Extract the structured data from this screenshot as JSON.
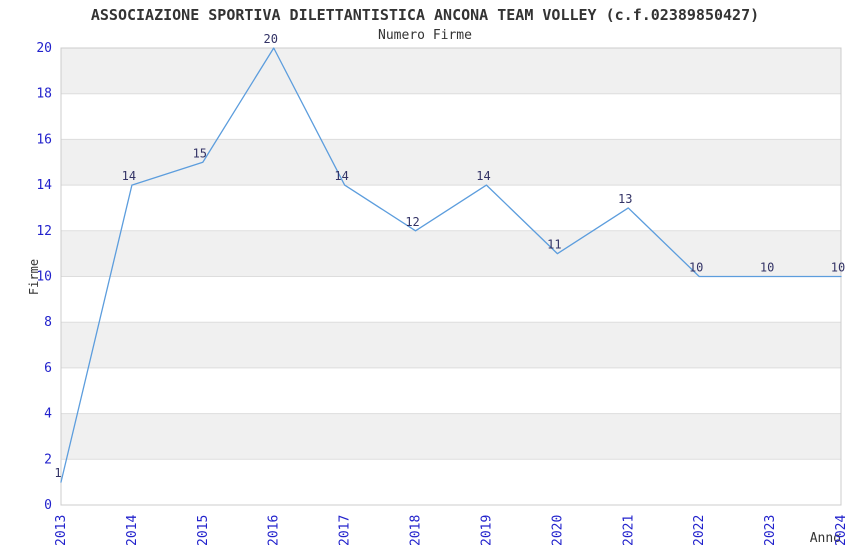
{
  "header": {
    "title": "ASSOCIAZIONE SPORTIVA DILETTANTISTICA ANCONA TEAM VOLLEY (c.f.02389850427)",
    "subtitle": "Numero Firme"
  },
  "chart_data": {
    "type": "line",
    "title": "ASSOCIAZIONE SPORTIVA DILETTANTISTICA ANCONA TEAM VOLLEY (c.f.02389850427)",
    "subtitle": "Numero Firme",
    "categories": [
      "2013",
      "2014",
      "2015",
      "2016",
      "2017",
      "2018",
      "2019",
      "2020",
      "2021",
      "2022",
      "2023",
      "2024"
    ],
    "values": [
      1,
      14,
      15,
      20,
      14,
      12,
      14,
      11,
      13,
      10,
      10,
      10
    ],
    "xlabel": "Anno",
    "ylabel": "Firme",
    "ylim": [
      0,
      20
    ],
    "ytick_step": 2,
    "yticks": [
      0,
      2,
      4,
      6,
      8,
      10,
      12,
      14,
      16,
      18,
      20
    ],
    "grid": "alternating horizontal bands, boundary lines every 2 units",
    "legend_position": "none",
    "data_labels": true,
    "colors": {
      "line": "#5c9ddd",
      "axis_tick_label": "#2222cc",
      "data_label": "#333366",
      "band_gray": "#f0f0f0",
      "band_white": "#ffffff",
      "gridline": "#dddddd",
      "plot_border": "#cccccc",
      "text": "#333333"
    }
  }
}
